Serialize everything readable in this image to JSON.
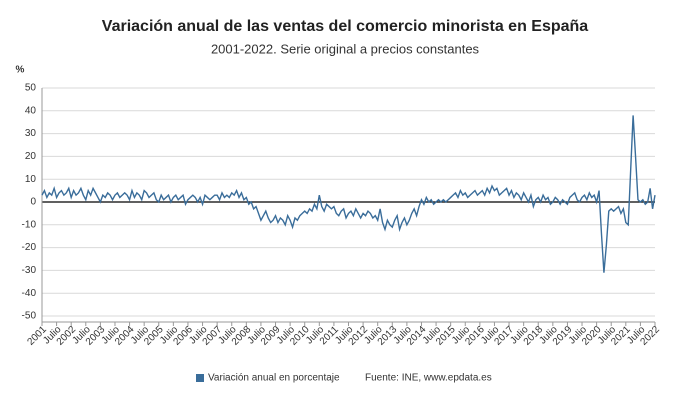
{
  "chart_data": {
    "type": "line",
    "title": "Variación anual de las ventas del comercio minorista en España",
    "subtitle": "2001-2022. Serie original a precios constantes",
    "y_unit": "%",
    "source": "Fuente: INE, www.epdata.es",
    "ylim": [
      -50,
      50
    ],
    "yticks": [
      -50,
      -40,
      -30,
      -20,
      -10,
      0,
      10,
      20,
      30,
      40,
      50
    ],
    "grid": true,
    "categories": [
      "2001",
      null,
      null,
      null,
      null,
      null,
      "Julio",
      null,
      null,
      null,
      null,
      null,
      "2002",
      null,
      null,
      null,
      null,
      null,
      "Julio",
      null,
      null,
      null,
      null,
      null,
      "2003",
      null,
      null,
      null,
      null,
      null,
      "Julio",
      null,
      null,
      null,
      null,
      null,
      "2004",
      null,
      null,
      null,
      null,
      null,
      "Julio",
      null,
      null,
      null,
      null,
      null,
      "2005",
      null,
      null,
      null,
      null,
      null,
      "Julio",
      null,
      null,
      null,
      null,
      null,
      "2006",
      null,
      null,
      null,
      null,
      null,
      "Julio",
      null,
      null,
      null,
      null,
      null,
      "2007",
      null,
      null,
      null,
      null,
      null,
      "Julio",
      null,
      null,
      null,
      null,
      null,
      "2008",
      null,
      null,
      null,
      null,
      null,
      "Julio",
      null,
      null,
      null,
      null,
      null,
      "2009",
      null,
      null,
      null,
      null,
      null,
      "Julio",
      null,
      null,
      null,
      null,
      null,
      "2010",
      null,
      null,
      null,
      null,
      null,
      "Julio",
      null,
      null,
      null,
      null,
      null,
      "2011",
      null,
      null,
      null,
      null,
      null,
      "Julio",
      null,
      null,
      null,
      null,
      null,
      "2012",
      null,
      null,
      null,
      null,
      null,
      "Julio",
      null,
      null,
      null,
      null,
      null,
      "2013",
      null,
      null,
      null,
      null,
      null,
      "Julio",
      null,
      null,
      null,
      null,
      null,
      "2014",
      null,
      null,
      null,
      null,
      null,
      "Julio",
      null,
      null,
      null,
      null,
      null,
      "2015",
      null,
      null,
      null,
      null,
      null,
      "Julio",
      null,
      null,
      null,
      null,
      null,
      "2016",
      null,
      null,
      null,
      null,
      null,
      "Julio",
      null,
      null,
      null,
      null,
      null,
      "2017",
      null,
      null,
      null,
      null,
      null,
      "Julio",
      null,
      null,
      null,
      null,
      null,
      "2018",
      null,
      null,
      null,
      null,
      null,
      "Julio",
      null,
      null,
      null,
      null,
      null,
      "2019",
      null,
      null,
      null,
      null,
      null,
      "Julio",
      null,
      null,
      null,
      null,
      null,
      "2020",
      null,
      null,
      null,
      null,
      null,
      "Julio",
      null,
      null,
      null,
      null,
      null,
      "2021",
      null,
      null,
      null,
      null,
      null,
      "Julio",
      null,
      null,
      null,
      null,
      null,
      "2022"
    ],
    "series": [
      {
        "name": "Variación anual en porcentaje",
        "color": "#3a6d9a",
        "values": [
          3,
          5,
          2,
          4,
          3,
          6,
          2,
          4,
          5,
          3,
          4,
          6,
          2,
          5,
          3,
          4,
          6,
          3,
          1,
          5,
          3,
          6,
          4,
          2,
          0,
          3,
          2,
          4,
          3,
          1,
          3,
          4,
          2,
          3,
          4,
          3,
          1,
          5,
          2,
          4,
          3,
          1,
          5,
          4,
          2,
          3,
          4,
          1,
          0,
          3,
          1,
          2,
          3,
          0,
          2,
          3,
          1,
          2,
          3,
          -1,
          1,
          2,
          3,
          2,
          0,
          2,
          -1,
          3,
          2,
          1,
          2,
          3,
          3,
          1,
          4,
          2,
          3,
          2,
          4,
          3,
          5,
          2,
          4,
          1,
          2,
          -1,
          0,
          -3,
          -2,
          -5,
          -8,
          -6,
          -4,
          -7,
          -9,
          -8,
          -6,
          -9,
          -7,
          -8,
          -10,
          -6,
          -8,
          -11,
          -7,
          -8,
          -6,
          -5,
          -4,
          -5,
          -3,
          -4,
          -1,
          -3,
          3,
          -2,
          -4,
          -1,
          -2,
          -3,
          -2,
          -5,
          -6,
          -4,
          -3,
          -7,
          -5,
          -4,
          -6,
          -3,
          -5,
          -7,
          -5,
          -6,
          -4,
          -5,
          -7,
          -6,
          -8,
          -3,
          -9,
          -12,
          -8,
          -10,
          -11,
          -8,
          -6,
          -12,
          -9,
          -7,
          -10,
          -8,
          -5,
          -3,
          -6,
          -2,
          1,
          -1,
          2,
          0,
          1,
          -1,
          0,
          1,
          0,
          1,
          0,
          1,
          2,
          3,
          4,
          2,
          5,
          3,
          4,
          2,
          3,
          4,
          5,
          3,
          4,
          5,
          3,
          6,
          4,
          7,
          5,
          6,
          3,
          4,
          5,
          6,
          3,
          5,
          2,
          4,
          3,
          1,
          4,
          2,
          0,
          3,
          -2,
          1,
          2,
          0,
          3,
          1,
          2,
          -1,
          0,
          2,
          1,
          -1,
          1,
          0,
          -1,
          2,
          3,
          4,
          1,
          0,
          2,
          3,
          1,
          4,
          2,
          3,
          0,
          5,
          -14,
          -31,
          -19,
          -4,
          -3,
          -4,
          -3,
          -2,
          -5,
          -3,
          -9,
          -10,
          14,
          38,
          20,
          1,
          0,
          1,
          -1,
          0,
          6,
          -3,
          3
        ]
      }
    ]
  }
}
